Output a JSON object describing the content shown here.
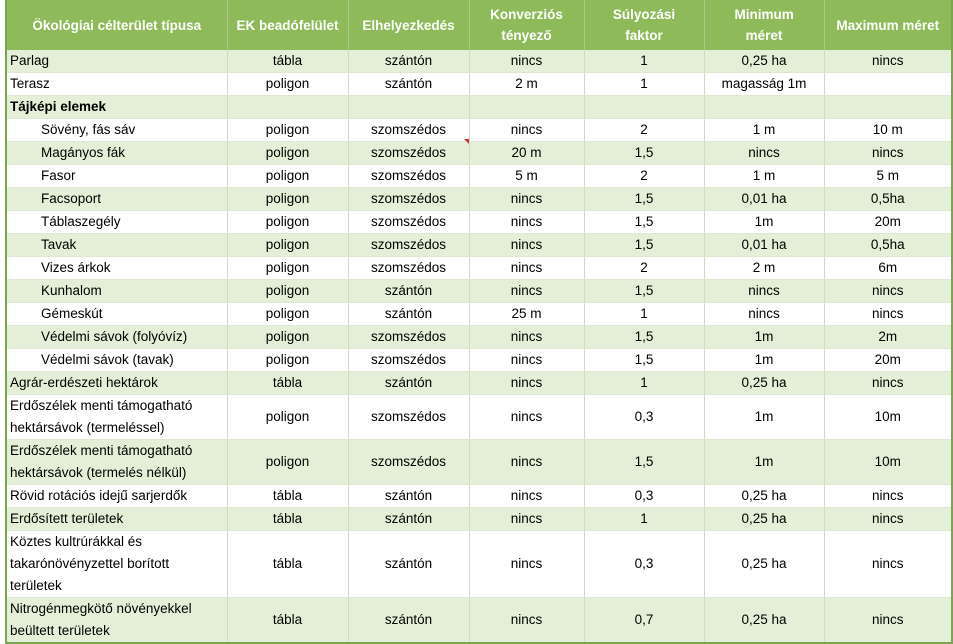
{
  "headers": [
    "Ökológiai célterület típusa",
    "EK beadófelület",
    "Elhelyezkedés",
    "Konverziós tényező",
    "Súlyozási faktor",
    "Minimum méret",
    "Maximum méret"
  ],
  "rows": [
    {
      "cells": [
        "Parlag",
        "tábla",
        "szántón",
        "nincs",
        "1",
        "0,25 ha",
        "nincs"
      ]
    },
    {
      "cells": [
        "Terasz",
        "poligon",
        "szántón",
        "2 m",
        "1",
        "magasság 1m",
        ""
      ]
    },
    {
      "cells": [
        "Tájképi elemek",
        "",
        "",
        "",
        "",
        "",
        ""
      ]
    },
    {
      "cells": [
        "Sövény, fás sáv",
        "poligon",
        "szomszédos",
        "nincs",
        "2",
        "1 m",
        "10 m"
      ]
    },
    {
      "cells": [
        "Magányos fák",
        "poligon",
        "szomszédos",
        "20 m",
        "1,5",
        "nincs",
        "nincs"
      ]
    },
    {
      "cells": [
        "Fasor",
        "poligon",
        "szomszédos",
        "5 m",
        "2",
        "1 m",
        "5 m"
      ]
    },
    {
      "cells": [
        "Facsoport",
        "poligon",
        "szomszédos",
        "nincs",
        "1,5",
        "0,01 ha",
        "0,5ha"
      ]
    },
    {
      "cells": [
        "Táblaszegély",
        "poligon",
        "szomszédos",
        "nincs",
        "1,5",
        "1m",
        "20m"
      ]
    },
    {
      "cells": [
        "Tavak",
        "poligon",
        "szomszédos",
        "nincs",
        "1,5",
        "0,01 ha",
        "0,5ha"
      ]
    },
    {
      "cells": [
        "Vizes árkok",
        "poligon",
        "szomszédos",
        "nincs",
        "2",
        "2 m",
        "6m"
      ]
    },
    {
      "cells": [
        "Kunhalom",
        "poligon",
        "szántón",
        "nincs",
        "1,5",
        "nincs",
        "nincs"
      ]
    },
    {
      "cells": [
        "Gémeskút",
        "poligon",
        "szántón",
        "25 m",
        "1",
        "nincs",
        "nincs"
      ]
    },
    {
      "cells": [
        "Védelmi sávok (folyóvíz)",
        "poligon",
        "szomszédos",
        "nincs",
        "1,5",
        "1m",
        "2m"
      ]
    },
    {
      "cells": [
        "Védelmi sávok (tavak)",
        "poligon",
        "szomszédos",
        "nincs",
        "1,5",
        "1m",
        "20m"
      ]
    },
    {
      "cells": [
        "Agrár-erdészeti hektárok",
        "tábla",
        "szántón",
        "nincs",
        "1",
        "0,25 ha",
        "nincs"
      ]
    },
    {
      "cells": [
        "Erdőszélek menti támogatható hektársávok (termeléssel)",
        "poligon",
        "szomszédos",
        "nincs",
        "0,3",
        "1m",
        "10m"
      ]
    },
    {
      "cells": [
        "Erdőszélek menti támogatható hektársávok (termelés nélkül)",
        "poligon",
        "szomszédos",
        "nincs",
        "1,5",
        "1m",
        "10m"
      ]
    },
    {
      "cells": [
        "Rövid rotációs idejű sarjerdők",
        "tábla",
        "szántón",
        "nincs",
        "0,3",
        "0,25 ha",
        "nincs"
      ]
    },
    {
      "cells": [
        "Erdősített területek",
        "tábla",
        "szántón",
        "nincs",
        "1",
        "0,25 ha",
        "nincs"
      ]
    },
    {
      "cells": [
        "Köztes kultrúrákkal és takarónövényzettel borított területek",
        "tábla",
        "szántón",
        "nincs",
        "0,3",
        "0,25 ha",
        "nincs"
      ]
    },
    {
      "cells": [
        "Nitrogénmegkötő növényekkel beültett területek",
        "tábla",
        "szántón",
        "nincs",
        "0,7",
        "0,25 ha",
        "nincs"
      ]
    }
  ],
  "colors": {
    "header_bg": "#8fba5a",
    "band_bg": "#e3efd6",
    "border": "#7aa54c",
    "comment_marker": "#d32f2f"
  }
}
